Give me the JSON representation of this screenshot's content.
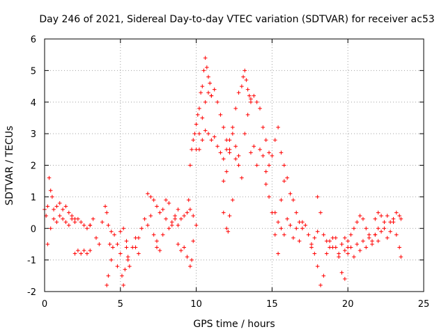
{
  "chart_data": {
    "type": "scatter",
    "title": "Day 246 of 2021, Sidereal Day-to-day VTEC variation (SDTVAR) for receiver ac53",
    "xlabel": "GPS time / hours",
    "ylabel": "SDTVAR / TECUs",
    "xlim": [
      0,
      25
    ],
    "ylim": [
      -2,
      6
    ],
    "xticks": [
      "0",
      "5",
      "10",
      "15",
      "20",
      "25"
    ],
    "yticks": [
      "-2",
      "-1",
      "0",
      "1",
      "2",
      "3",
      "4",
      "5",
      "6"
    ],
    "grid": true,
    "marker": "+",
    "color": "#ff0000",
    "series": [
      {
        "name": "SDTVAR",
        "tracks": [
          {
            "x": [
              0,
              0.1,
              0.2,
              0.3,
              0.4,
              0.5,
              0.6,
              0.8,
              1.0,
              1.2,
              1.4,
              1.6,
              1.8,
              2.0,
              2.2,
              2.4,
              2.6,
              2.8,
              3.0
            ],
            "y": [
              0.6,
              0.4,
              0.7,
              1.6,
              1.2,
              1.0,
              0.6,
              0.7,
              0.8,
              0.6,
              0.7,
              0.5,
              0.4,
              0.3,
              0.3,
              0.2,
              0.1,
              0.0,
              0.1
            ]
          },
          {
            "x": [
              0.2,
              0.4,
              0.6,
              0.8,
              1.0,
              1.2,
              1.4,
              1.6,
              1.8,
              2.0
            ],
            "y": [
              -0.5,
              0.0,
              0.3,
              0.2,
              0.4,
              0.3,
              0.2,
              0.1,
              0.3,
              0.2
            ]
          },
          {
            "x": [
              2.0,
              2.2,
              2.4,
              2.6,
              2.8,
              3.0
            ],
            "y": [
              -0.8,
              -0.7,
              -0.8,
              -0.7,
              -0.8,
              -0.7
            ]
          },
          {
            "x": [
              3.0,
              3.2,
              3.4,
              3.6,
              3.8,
              4.0,
              4.1,
              4.2,
              4.4
            ],
            "y": [
              0.1,
              0.3,
              -0.3,
              -0.5,
              0.2,
              0.7,
              0.5,
              0.1,
              -0.1
            ]
          },
          {
            "x": [
              4.1,
              4.2,
              4.3,
              4.4,
              4.5,
              4.6,
              4.8,
              5.0,
              5.2,
              5.4,
              5.5
            ],
            "y": [
              -1.8,
              -1.5,
              -0.5,
              -1.0,
              -0.6,
              -0.2,
              -0.5,
              -0.1,
              0.0,
              -0.6,
              -1.0
            ]
          },
          {
            "x": [
              4.8,
              5.0,
              5.1,
              5.2,
              5.3,
              5.4,
              5.5,
              5.6,
              5.8,
              6.0,
              6.2
            ],
            "y": [
              -1.2,
              -0.8,
              -1.5,
              -1.8,
              -1.3,
              -0.4,
              -0.9,
              -1.2,
              -0.6,
              -0.3,
              -0.8
            ]
          },
          {
            "x": [
              6.0,
              6.2,
              6.4,
              6.6,
              6.8,
              7.0,
              7.2,
              7.4
            ],
            "y": [
              -0.6,
              -0.3,
              0.0,
              0.3,
              0.1,
              0.4,
              -0.2,
              -0.6
            ]
          },
          {
            "x": [
              6.8,
              7.0,
              7.2,
              7.4,
              7.6,
              7.8,
              8.0,
              8.2
            ],
            "y": [
              1.1,
              1.0,
              0.9,
              0.7,
              0.5,
              0.6,
              0.9,
              0.8
            ]
          },
          {
            "x": [
              7.4,
              7.6,
              7.8,
              8.0,
              8.2,
              8.4,
              8.6,
              8.8
            ],
            "y": [
              -0.4,
              -0.7,
              -0.2,
              0.3,
              0.0,
              0.1,
              0.4,
              0.1
            ]
          },
          {
            "x": [
              8.4,
              8.6,
              8.8,
              9.0,
              9.2,
              9.4,
              9.5,
              9.6,
              9.8
            ],
            "y": [
              0.2,
              0.3,
              0.6,
              0.3,
              0.4,
              0.5,
              0.9,
              0.6,
              0.4
            ]
          },
          {
            "x": [
              8.8,
              9.0,
              9.2,
              9.4,
              9.6,
              9.7,
              9.8,
              10.0
            ],
            "y": [
              -0.5,
              -0.7,
              -0.6,
              -0.9,
              -1.2,
              -1.0,
              -0.4,
              0.1
            ]
          },
          {
            "x": [
              9.6,
              9.7,
              9.8,
              9.9,
              10.0,
              10.1,
              10.2,
              10.3,
              10.4,
              10.5,
              10.6,
              10.7,
              10.8,
              10.9,
              11.0
            ],
            "y": [
              2.0,
              2.5,
              2.8,
              3.0,
              3.3,
              3.6,
              3.8,
              4.3,
              4.5,
              5.0,
              5.4,
              5.1,
              4.8,
              4.6,
              4.2
            ]
          },
          {
            "x": [
              10.0,
              10.2,
              10.4,
              10.6,
              10.8,
              11.0,
              11.2,
              11.4,
              11.6,
              11.8,
              12.0,
              12.2
            ],
            "y": [
              2.5,
              3.0,
              3.5,
              4.0,
              4.3,
              4.2,
              4.4,
              4.0,
              3.6,
              3.2,
              2.8,
              2.5
            ]
          },
          {
            "x": [
              10.2,
              10.4,
              10.6,
              10.8,
              11.0,
              11.2,
              11.4,
              11.6,
              11.8,
              12.0,
              12.2,
              12.4,
              12.6,
              12.8
            ],
            "y": [
              2.5,
              2.8,
              3.1,
              3.0,
              2.8,
              2.9,
              2.6,
              2.4,
              2.2,
              2.5,
              2.8,
              3.0,
              2.6,
              2.3
            ]
          },
          {
            "x": [
              11.8,
              12.0,
              12.2,
              12.4,
              12.6,
              12.8,
              13.0,
              13.1,
              13.2,
              13.3,
              13.4,
              13.5,
              13.6
            ],
            "y": [
              1.5,
              1.8,
              2.4,
              3.2,
              3.8,
              4.3,
              4.5,
              4.8,
              5.0,
              4.7,
              4.4,
              4.2,
              4.1
            ]
          },
          {
            "x": [
              11.8,
              12.0,
              12.1,
              12.2,
              12.4
            ],
            "y": [
              0.5,
              0.0,
              -0.1,
              0.4,
              0.9
            ]
          },
          {
            "x": [
              12.6,
              12.8,
              13.0,
              13.2,
              13.4,
              13.6,
              13.8,
              14.0,
              14.2,
              14.4,
              14.6,
              14.8
            ],
            "y": [
              2.2,
              2.0,
              1.6,
              3.0,
              3.6,
              4.0,
              4.2,
              4.0,
              3.8,
              3.2,
              2.8,
              2.4
            ]
          },
          {
            "x": [
              13.6,
              13.8,
              14.0,
              14.2,
              14.4,
              14.6,
              14.8,
              15.0,
              15.2,
              15.4,
              15.6,
              15.8
            ],
            "y": [
              2.4,
              2.6,
              2.0,
              2.5,
              2.3,
              1.4,
              1.0,
              0.5,
              -0.2,
              -0.8,
              0.9,
              1.5
            ]
          },
          {
            "x": [
              14.6,
              14.8,
              15.0,
              15.2,
              15.4,
              15.6,
              15.8,
              16.0,
              16.2,
              16.4,
              16.6,
              16.8,
              17.0
            ],
            "y": [
              1.8,
              2.0,
              2.3,
              2.8,
              3.2,
              2.4,
              2.0,
              1.6,
              1.1,
              0.9,
              0.5,
              0.2,
              0.0
            ]
          },
          {
            "x": [
              15.2,
              15.4,
              15.6,
              15.8,
              16.0,
              16.2,
              16.4,
              16.6,
              16.8,
              17.0,
              17.2,
              17.4,
              17.6,
              17.8,
              18.0
            ],
            "y": [
              0.5,
              0.2,
              0.0,
              -0.2,
              0.3,
              0.1,
              -0.3,
              0.0,
              -0.4,
              0.2,
              0.1,
              -0.2,
              -0.5,
              -0.3,
              -0.1
            ]
          },
          {
            "x": [
              17.6,
              17.8,
              18.0,
              18.2,
              18.4,
              18.6,
              18.8,
              19.0,
              19.2,
              19.4,
              19.6,
              19.8
            ],
            "y": [
              -0.6,
              -0.8,
              -1.2,
              -1.8,
              -1.5,
              -0.8,
              -0.4,
              -0.6,
              -0.3,
              -0.9,
              -1.4,
              -1.6
            ]
          },
          {
            "x": [
              18.0,
              18.2,
              18.4,
              18.6,
              18.8,
              19.0,
              19.2,
              19.4,
              19.6,
              19.8,
              20.0
            ],
            "y": [
              1.0,
              0.5,
              -0.2,
              -0.4,
              -0.6,
              -0.3,
              -0.6,
              -0.8,
              -0.5,
              -0.7,
              -0.4
            ]
          },
          {
            "x": [
              19.6,
              19.8,
              20.0,
              20.2,
              20.4,
              20.6,
              20.8,
              21.0,
              21.2,
              21.4,
              21.6,
              21.8,
              22.0
            ],
            "y": [
              -0.5,
              -0.3,
              -0.6,
              -0.2,
              0.0,
              0.2,
              0.4,
              0.3,
              0.0,
              -0.2,
              -0.4,
              -0.2,
              0.0
            ]
          },
          {
            "x": [
              20.0,
              20.2,
              20.4,
              20.6,
              20.8,
              21.0,
              21.2,
              21.4,
              21.6,
              21.8,
              22.0,
              22.2,
              22.4,
              22.6,
              22.8,
              23.0,
              23.2,
              23.4,
              23.5
            ],
            "y": [
              -0.8,
              -0.6,
              -0.9,
              -0.5,
              -0.7,
              -0.4,
              -0.6,
              -0.3,
              -0.5,
              -0.2,
              -0.4,
              -0.1,
              0.0,
              -0.3,
              -0.1,
              0.2,
              -0.2,
              -0.6,
              -0.9
            ]
          },
          {
            "x": [
              21.8,
              22.0,
              22.2,
              22.4,
              22.6,
              22.8,
              23.0,
              23.2,
              23.4,
              23.5
            ],
            "y": [
              0.3,
              0.5,
              0.4,
              0.2,
              0.4,
              0.2,
              0.3,
              0.5,
              0.4,
              0.3
            ]
          }
        ]
      }
    ]
  }
}
